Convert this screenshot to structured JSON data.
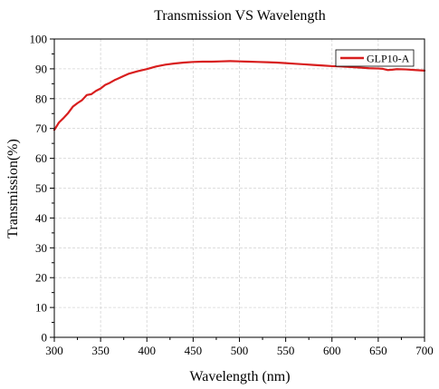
{
  "chart_data": {
    "type": "line",
    "title": "Transmission VS Wavelength",
    "xlabel": "Wavelength (nm)",
    "ylabel": "Transmission(%)",
    "xlim": [
      300,
      700
    ],
    "ylim": [
      0,
      100
    ],
    "xticks": [
      "300",
      "350",
      "400",
      "450",
      "500",
      "550",
      "600",
      "650",
      "700"
    ],
    "yticks": [
      "0",
      "10",
      "20",
      "30",
      "40",
      "50",
      "60",
      "70",
      "80",
      "90",
      "100"
    ],
    "grid": true,
    "legend_position": "top-right",
    "series": [
      {
        "name": "GLP10-A",
        "color": "#d81e1e",
        "x": [
          300,
          305,
          310,
          315,
          320,
          325,
          330,
          335,
          340,
          345,
          350,
          355,
          360,
          365,
          370,
          375,
          380,
          390,
          400,
          410,
          420,
          430,
          440,
          450,
          460,
          470,
          480,
          490,
          500,
          510,
          520,
          530,
          540,
          550,
          560,
          570,
          580,
          590,
          600,
          610,
          620,
          630,
          640,
          650,
          655,
          660,
          665,
          670,
          680,
          690,
          700
        ],
        "values": [
          69.5,
          72,
          73.5,
          75.2,
          77.3,
          78.5,
          79.5,
          81.2,
          81.5,
          82.6,
          83.4,
          84.6,
          85.3,
          86.2,
          86.9,
          87.6,
          88.3,
          89.2,
          89.9,
          90.8,
          91.4,
          91.8,
          92.1,
          92.3,
          92.4,
          92.4,
          92.5,
          92.6,
          92.5,
          92.4,
          92.3,
          92.2,
          92.1,
          91.9,
          91.7,
          91.5,
          91.3,
          91.1,
          90.9,
          90.8,
          90.6,
          90.4,
          90.2,
          90.1,
          90.0,
          89.6,
          89.7,
          89.9,
          89.8,
          89.6,
          89.4
        ]
      }
    ]
  }
}
